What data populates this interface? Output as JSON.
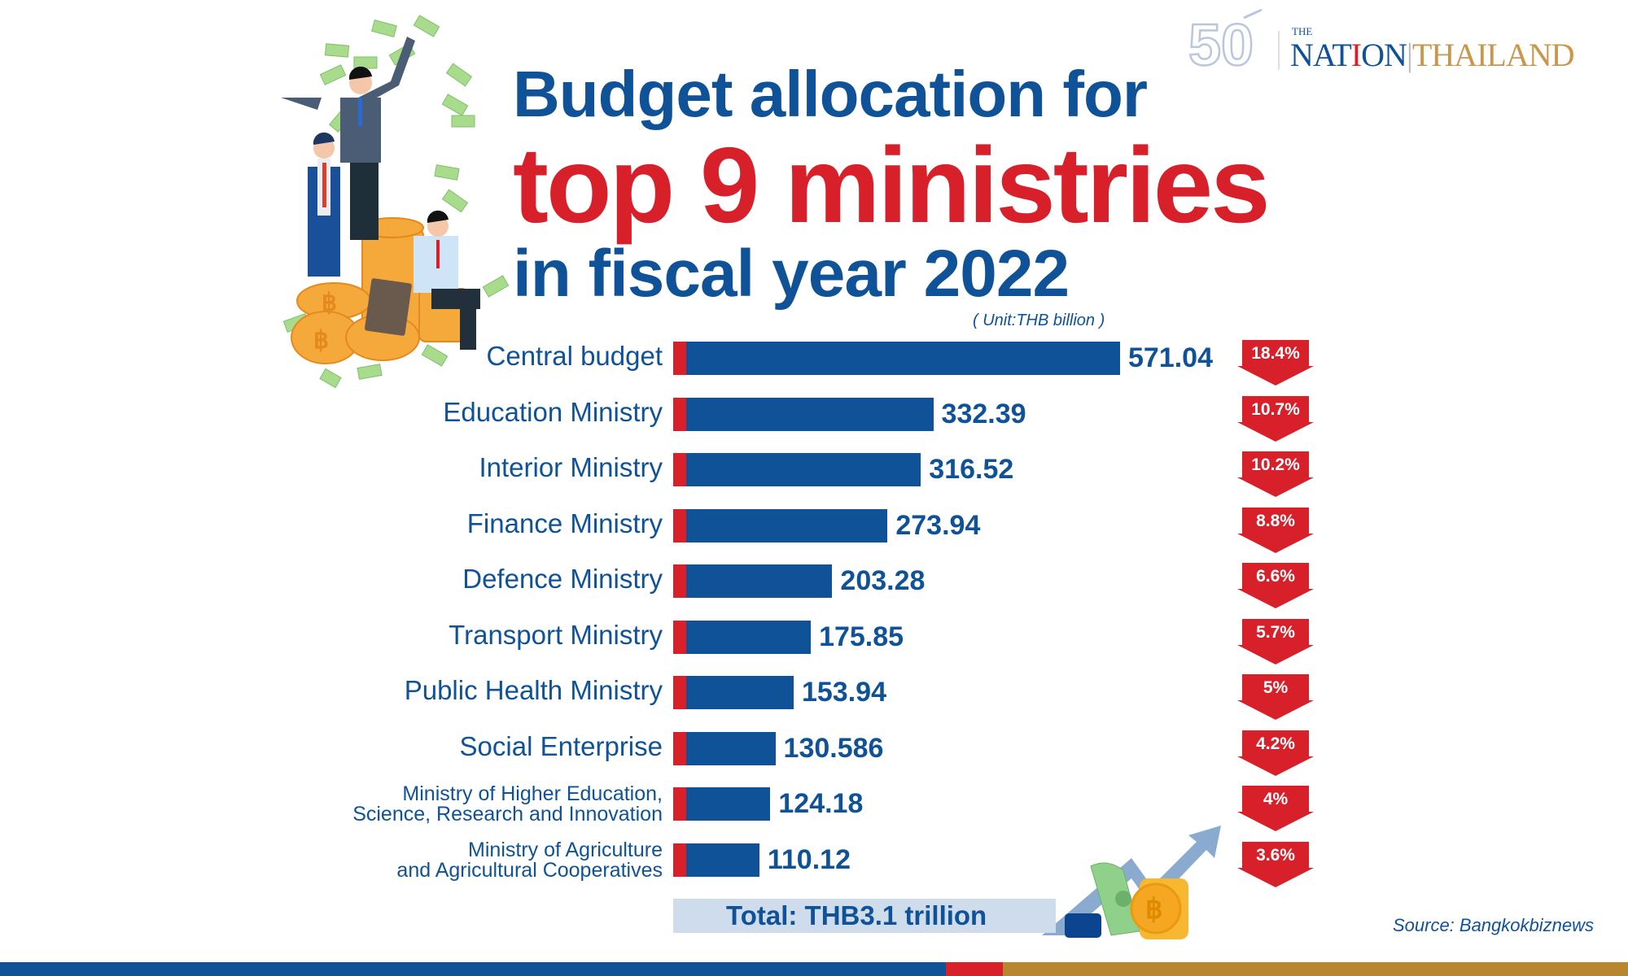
{
  "branding": {
    "anniversary_mark": "50th",
    "logo_the": "THE",
    "logo_nation_a": "NAT",
    "logo_nation_i": "I",
    "logo_nation_b": "ON",
    "logo_thailand": "THAILAND",
    "colors": {
      "blue": "#0f5298",
      "red": "#d7202a",
      "gold": "#b8862f"
    }
  },
  "title": {
    "line1": "Budget allocation for",
    "line2": "top 9 ministries",
    "line3": "in fiscal year 2022"
  },
  "unit": "( Unit:THB billion )",
  "chart_data": {
    "type": "bar",
    "orientation": "horizontal",
    "unit": "THB billion",
    "categories": [
      "Central budget",
      "Education Ministry",
      "Interior Ministry",
      "Finance Ministry",
      "Defence Ministry",
      "Transport Ministry",
      "Public Health Ministry",
      "Social Enterprise",
      "Ministry of Higher Education,|Science, Research and Innovation",
      "Ministry of Agriculture|and Agricultural Cooperatives"
    ],
    "values": [
      571.04,
      332.39,
      316.52,
      273.94,
      203.28,
      175.85,
      153.94,
      130.586,
      124.18,
      110.12
    ],
    "value_labels": [
      "571.04",
      "332.39",
      "316.52",
      "273.94",
      "203.28",
      "175.85",
      "153.94",
      "130.586",
      "124.18",
      "110.12"
    ],
    "shares": [
      "18.4%",
      "10.7%",
      "10.2%",
      "8.8%",
      "6.6%",
      "5.7%",
      "5%",
      "4.2%",
      "4%",
      "3.6%"
    ],
    "bar_color": "#0f5298",
    "cap_color": "#d7202a",
    "grid": false
  },
  "total": "Total: THB3.1 trillion",
  "source": "Source: Bangkokbiznews"
}
